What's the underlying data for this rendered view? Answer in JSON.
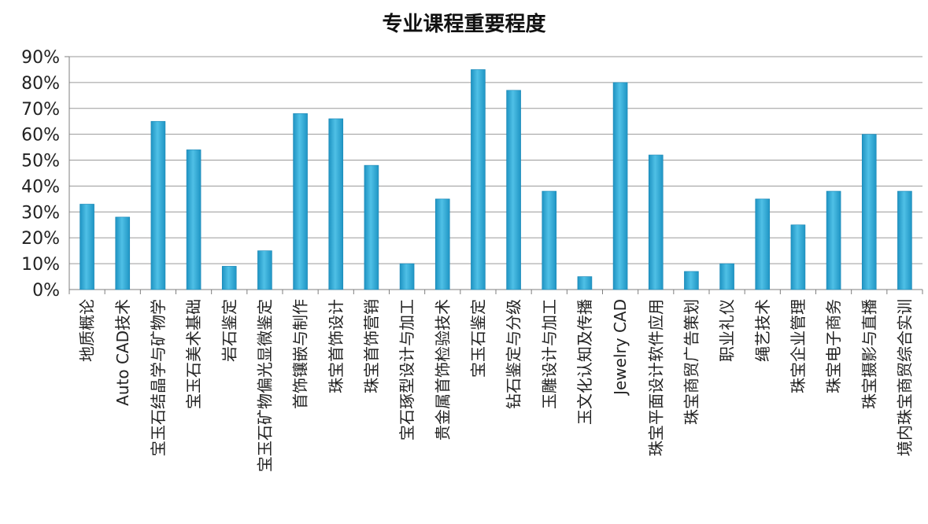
{
  "chart_data": {
    "type": "bar",
    "title": "专业课程重要程度",
    "xlabel": "",
    "ylabel": "",
    "ylim": [
      0,
      90
    ],
    "yticks": [
      "0%",
      "10%",
      "20%",
      "30%",
      "40%",
      "50%",
      "60%",
      "70%",
      "80%",
      "90%"
    ],
    "grid": true,
    "legend": "none",
    "bar_color": "#2aa7d3",
    "categories": [
      "地质概论",
      "Auto CAD技术",
      "宝玉石结晶学与矿物学",
      "宝玉石美术基础",
      "岩石鉴定",
      "宝玉石矿物偏光显微鉴定",
      "首饰镶嵌与制作",
      "珠宝首饰设计",
      "珠宝首饰营销",
      "宝石琢型设计与加工",
      "贵金属首饰检验技术",
      "宝玉石鉴定",
      "钻石鉴定与分级",
      "玉雕设计与加工",
      "玉文化认知及传播",
      "Jewelry CAD",
      "珠宝平面设计软件应用",
      "珠宝商贸广告策划",
      "职业礼仪",
      "绳艺技术",
      "珠宝企业管理",
      "珠宝电子商务",
      "珠宝摄影与直播",
      "境内珠宝商贸综合实训"
    ],
    "values": [
      33,
      28,
      65,
      54,
      9,
      15,
      68,
      66,
      48,
      10,
      35,
      85,
      77,
      38,
      5,
      80,
      52,
      7,
      10,
      35,
      25,
      38,
      60,
      38
    ]
  }
}
